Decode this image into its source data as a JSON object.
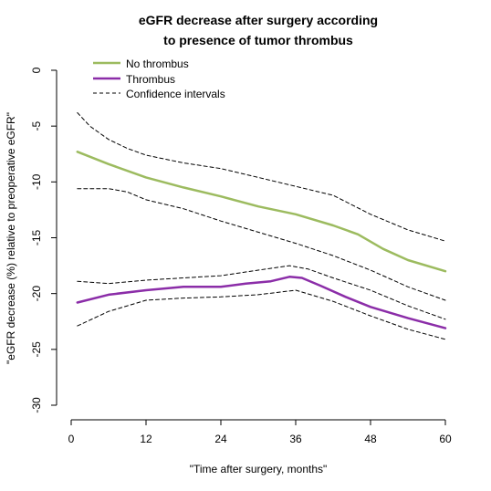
{
  "chart_data": {
    "type": "line",
    "title_lines": [
      "eGFR decrease after surgery according",
      "to presence of tumor thrombus"
    ],
    "xlabel": "\"Time after surgery, months\"",
    "ylabel": "\"eGFR decrease (%) relative to preoperative eGFR\"",
    "xlim": [
      0,
      60
    ],
    "ylim": [
      -30,
      0
    ],
    "xticks": [
      0,
      12,
      24,
      36,
      48,
      60
    ],
    "yticks": [
      0,
      -5,
      -10,
      -15,
      -20,
      -25,
      -30
    ],
    "legend": {
      "position": "top-left",
      "entries": [
        {
          "label": "No thrombus",
          "color": "#9cbb5f",
          "style": "solid"
        },
        {
          "label": "Thrombus",
          "color": "#8b2da8",
          "style": "solid"
        },
        {
          "label": "Confidence intervals",
          "color": "#000000",
          "style": "dashed"
        }
      ]
    },
    "series": [
      {
        "name": "No thrombus",
        "color": "#9cbb5f",
        "style": "solid",
        "x": [
          1,
          6,
          12,
          18,
          24,
          30,
          36,
          42,
          46,
          50,
          54,
          60
        ],
        "y": [
          -7.3,
          -8.4,
          -9.6,
          -10.5,
          -11.3,
          -12.2,
          -12.9,
          -13.9,
          -14.7,
          -16.0,
          -17.0,
          -18.0
        ]
      },
      {
        "name": "Thrombus",
        "color": "#8b2da8",
        "style": "solid",
        "x": [
          1,
          6,
          12,
          18,
          24,
          28,
          32,
          35,
          37,
          40,
          44,
          48,
          54,
          60
        ],
        "y": [
          -20.8,
          -20.1,
          -19.7,
          -19.4,
          -19.4,
          -19.1,
          -18.9,
          -18.5,
          -18.6,
          -19.3,
          -20.3,
          -21.2,
          -22.2,
          -23.1
        ]
      },
      {
        "name": "Confidence intervals",
        "color": "#000000",
        "style": "dashed",
        "x": [
          1,
          3,
          6,
          9,
          12,
          18,
          24,
          30,
          36,
          42,
          48,
          54,
          60
        ],
        "y": [
          -3.8,
          -5.0,
          -6.2,
          -7.0,
          -7.6,
          -8.3,
          -8.8,
          -9.6,
          -10.4,
          -11.2,
          -12.9,
          -14.3,
          -15.3
        ]
      },
      {
        "name": "Confidence intervals",
        "color": "#000000",
        "style": "dashed",
        "x": [
          1,
          6,
          9,
          12,
          18,
          24,
          30,
          36,
          42,
          48,
          54,
          60
        ],
        "y": [
          -10.6,
          -10.6,
          -10.9,
          -11.6,
          -12.4,
          -13.5,
          -14.5,
          -15.5,
          -16.6,
          -17.9,
          -19.4,
          -20.6
        ]
      },
      {
        "name": "Confidence intervals",
        "color": "#000000",
        "style": "dashed",
        "x": [
          1,
          6,
          12,
          18,
          24,
          30,
          35,
          38,
          42,
          48,
          54,
          60
        ],
        "y": [
          -18.9,
          -19.1,
          -18.8,
          -18.6,
          -18.4,
          -17.9,
          -17.5,
          -17.8,
          -18.6,
          -19.7,
          -21.1,
          -22.3
        ]
      },
      {
        "name": "Confidence intervals",
        "color": "#000000",
        "style": "dashed",
        "x": [
          1,
          6,
          12,
          18,
          24,
          30,
          36,
          42,
          48,
          54,
          60
        ],
        "y": [
          -22.9,
          -21.6,
          -20.6,
          -20.4,
          -20.3,
          -20.1,
          -19.7,
          -20.7,
          -22.0,
          -23.2,
          -24.1
        ]
      }
    ]
  }
}
